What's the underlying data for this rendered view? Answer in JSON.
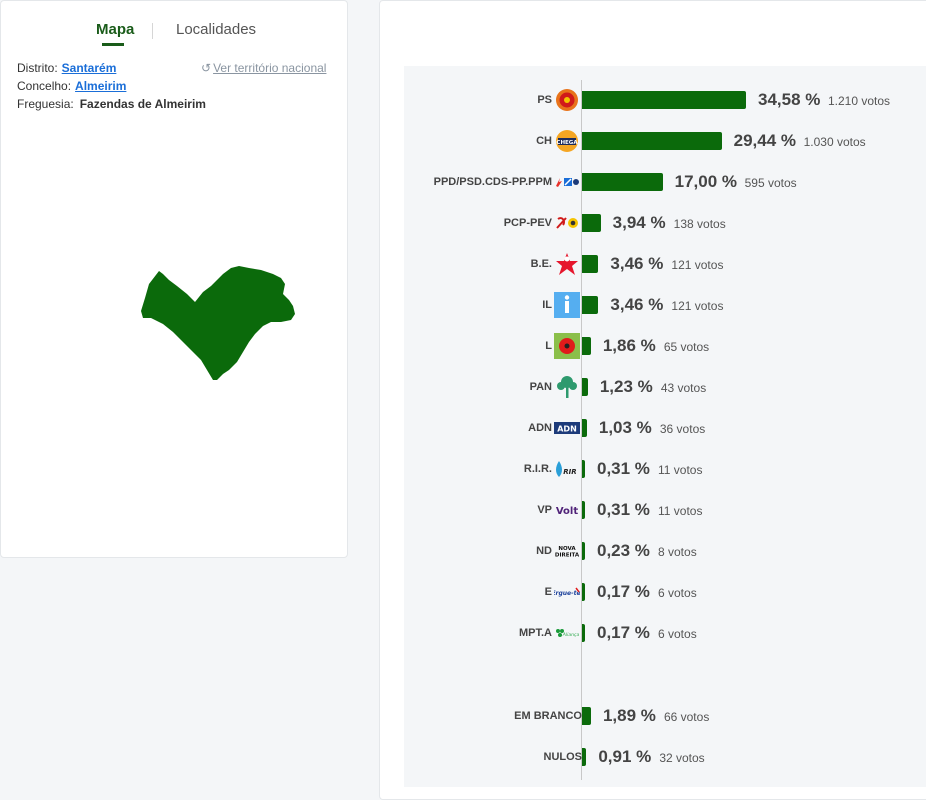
{
  "tabs": {
    "map": "Mapa",
    "localities": "Localidades"
  },
  "location": {
    "district_label": "Distrito:",
    "district": "Santarém",
    "municipality_label": "Concelho:",
    "municipality": "Almeirim",
    "parish_label": "Freguesia:",
    "parish": "Fazendas de Almeirim",
    "national_link": "Ver território nacional"
  },
  "colors": {
    "bar": "#0b6a0b",
    "accent": "#1a5c1a",
    "link": "#1a6ed8"
  },
  "chart_data": {
    "type": "bar",
    "orientation": "horizontal",
    "categories": [
      "PS",
      "CH",
      "PPD/PSD.CDS-PP.PPM",
      "PCP-PEV",
      "B.E.",
      "IL",
      "L",
      "PAN",
      "ADN",
      "R.I.R.",
      "VP",
      "ND",
      "E",
      "MPT.A",
      "EM BRANCO",
      "NULOS"
    ],
    "values": [
      34.58,
      29.44,
      17.0,
      3.94,
      3.46,
      3.46,
      1.86,
      1.23,
      1.03,
      0.31,
      0.31,
      0.23,
      0.17,
      0.17,
      1.89,
      0.91
    ],
    "votes": [
      1210,
      1030,
      595,
      138,
      121,
      121,
      65,
      43,
      36,
      11,
      11,
      8,
      6,
      6,
      66,
      32
    ],
    "xlim": [
      0,
      40
    ]
  },
  "parties": [
    {
      "name": "PS",
      "pct": "34,58 %",
      "votes": "1.210 votos",
      "logo": "ps-fist-rose-logo"
    },
    {
      "name": "CH",
      "pct": "29,44 %",
      "votes": "1.030 votos",
      "logo": "chega-logo",
      "logo_text": "CHEGA"
    },
    {
      "name": "PPD/PSD.CDS-PP.PPM",
      "pct": "17,00 %",
      "votes": "595 votos",
      "logo": "ad-coalition-logo"
    },
    {
      "name": "PCP-PEV",
      "pct": "3,94 %",
      "votes": "138 votos",
      "logo": "cdu-hammer-sickle-sunflower-logo"
    },
    {
      "name": "B.E.",
      "pct": "3,46 %",
      "votes": "121 votos",
      "logo": "bloco-star-logo"
    },
    {
      "name": "IL",
      "pct": "3,46 %",
      "votes": "121 votos",
      "logo": "iniciativa-liberal-logo"
    },
    {
      "name": "L",
      "pct": "1,86 %",
      "votes": "65 votos",
      "logo": "livre-poppy-logo"
    },
    {
      "name": "PAN",
      "pct": "1,23 %",
      "votes": "43 votos",
      "logo": "pan-tree-logo"
    },
    {
      "name": "ADN",
      "pct": "1,03 %",
      "votes": "36 votos",
      "logo": "adn-logo",
      "logo_text": "ADN"
    },
    {
      "name": "R.I.R.",
      "pct": "0,31 %",
      "votes": "11 votos",
      "logo": "rir-logo",
      "logo_text": "RIR"
    },
    {
      "name": "VP",
      "pct": "0,31 %",
      "votes": "11 votos",
      "logo": "volt-logo",
      "logo_text": "Volt"
    },
    {
      "name": "ND",
      "pct": "0,23 %",
      "votes": "8 votos",
      "logo": "nova-direita-logo",
      "logo_text": "NOVA DIREITA"
    },
    {
      "name": "E",
      "pct": "0,17 %",
      "votes": "6 votos",
      "logo": "ergue-te-logo",
      "logo_text": "Ergue-te"
    },
    {
      "name": "MPT.A",
      "pct": "0,17 %",
      "votes": "6 votos",
      "logo": "mpt-clover-logo",
      "logo_text": "Aliança"
    },
    {
      "name": "EM BRANCO",
      "pct": "1,89 %",
      "votes": "66 votos",
      "logo": ""
    },
    {
      "name": "NULOS",
      "pct": "0,91 %",
      "votes": "32 votos",
      "logo": ""
    }
  ]
}
